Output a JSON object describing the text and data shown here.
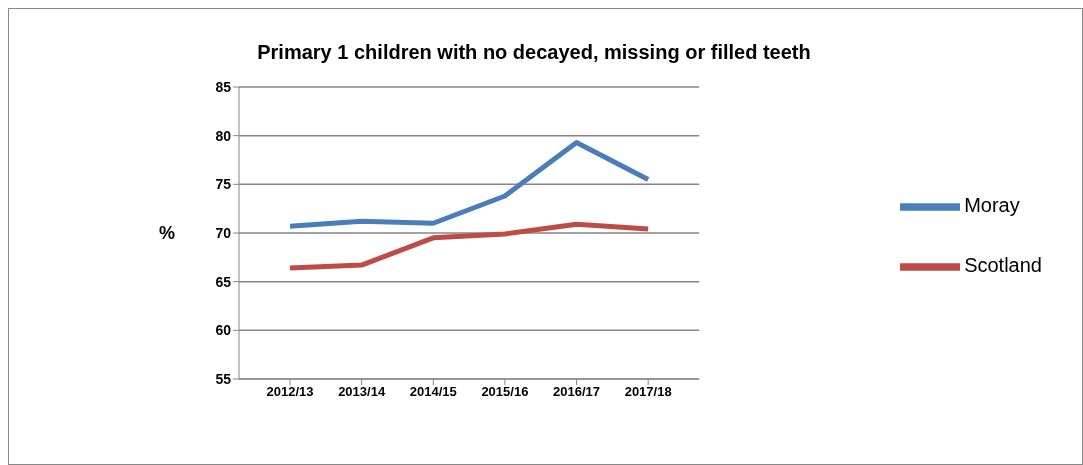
{
  "chart_data": {
    "type": "line",
    "title": "Primary 1 children with no decayed, missing or filled teeth",
    "ylabel": "%",
    "categories": [
      "2012/13",
      "2013/14",
      "2014/15",
      "2015/16",
      "2016/17",
      "2017/18"
    ],
    "series": [
      {
        "name": "Moray",
        "color": "#4a7ebb",
        "values": [
          70.7,
          71.2,
          71.0,
          73.8,
          79.3,
          75.5
        ]
      },
      {
        "name": "Scotland",
        "color": "#be4b48",
        "values": [
          66.4,
          66.7,
          69.5,
          69.9,
          70.9,
          70.4
        ]
      }
    ],
    "ylim": [
      55,
      85
    ],
    "yticks": [
      55,
      60,
      65,
      70,
      75,
      80,
      85
    ],
    "grid": "y",
    "legend": "right",
    "marker": "none",
    "line_style": "solid"
  }
}
